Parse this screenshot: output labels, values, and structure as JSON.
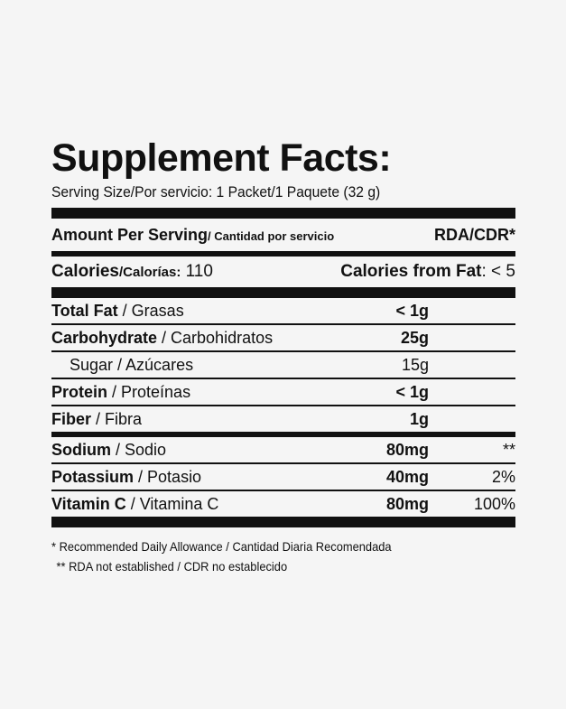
{
  "title": "Supplement Facts:",
  "serving": "Serving Size/Por servicio: 1 Packet/1 Paquete (32 g)",
  "header": {
    "amount_bold": "Amount Per Serving",
    "amount_small": "/ Cantidad por servicio",
    "rda": "RDA/CDR*"
  },
  "calories": {
    "label_bold": "Calories",
    "label_small": "/Calorías:",
    "value": "110",
    "fat_label": "Calories from Fat",
    "fat_value": ": < 5"
  },
  "nutrients": [
    {
      "name": "Total Fat",
      "sub": " / Grasas",
      "amount": "< 1g",
      "rda": ""
    },
    {
      "name": "Carbohydrate",
      "sub": " / Carbohidratos",
      "amount": "25g",
      "rda": ""
    },
    {
      "name": "",
      "sub": "Sugar / Azúcares",
      "amount": "15g",
      "rda": ""
    },
    {
      "name": "Protein",
      "sub": " / Proteínas",
      "amount": "< 1g",
      "rda": ""
    },
    {
      "name": "Fiber",
      "sub": " / Fibra",
      "amount": "1g",
      "rda": ""
    },
    {
      "name": "Sodium",
      "sub": " / Sodio",
      "amount": "80mg",
      "rda": "**"
    },
    {
      "name": "Potassium",
      "sub": " / Potasio",
      "amount": "40mg",
      "rda": "2%"
    },
    {
      "name": "Vitamin C",
      "sub": " / Vitamina C",
      "amount": "80mg",
      "rda": "100%"
    }
  ],
  "footnotes": [
    "* Recommended Daily Allowance / Cantidad Diaria Recomendada",
    "** RDA not established / CDR no establecido"
  ]
}
